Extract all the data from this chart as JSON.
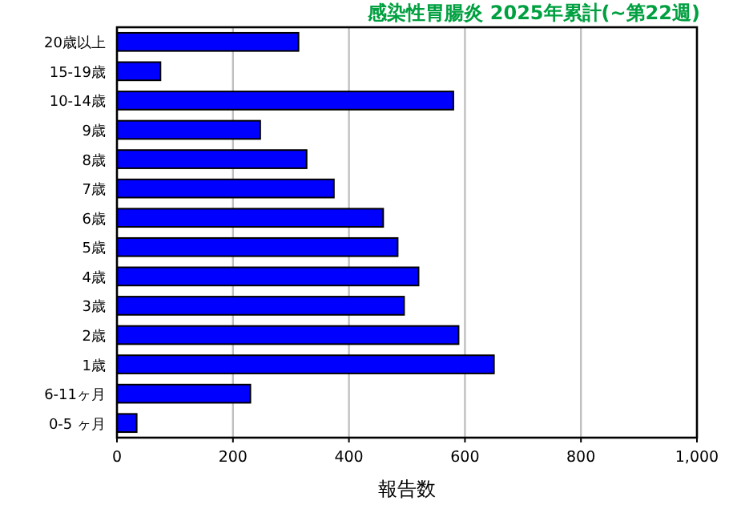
{
  "chart_data": {
    "type": "bar",
    "orientation": "horizontal",
    "title": "感染性胃腸炎 2025年累計(~第22週)",
    "xlabel": "報告数",
    "categories": [
      "20歳以上",
      "15-19歳",
      "10-14歳",
      "9歳",
      "8歳",
      "7歳",
      "6歳",
      "5歳",
      "4歳",
      "3歳",
      "2歳",
      "1歳",
      "6-11ヶ月",
      "0-5 ヶ月"
    ],
    "values": [
      313,
      75,
      580,
      247,
      327,
      374,
      459,
      484,
      520,
      495,
      589,
      650,
      230,
      34
    ],
    "color": "#0000ff",
    "xlim": [
      0,
      1000
    ],
    "xticks": [
      {
        "value": 0,
        "label": "0"
      },
      {
        "value": 200,
        "label": "200"
      },
      {
        "value": 400,
        "label": "400"
      },
      {
        "value": 600,
        "label": "600"
      },
      {
        "value": 800,
        "label": "800"
      },
      {
        "value": 1000,
        "label": "1,000"
      }
    ],
    "grid": "x"
  }
}
